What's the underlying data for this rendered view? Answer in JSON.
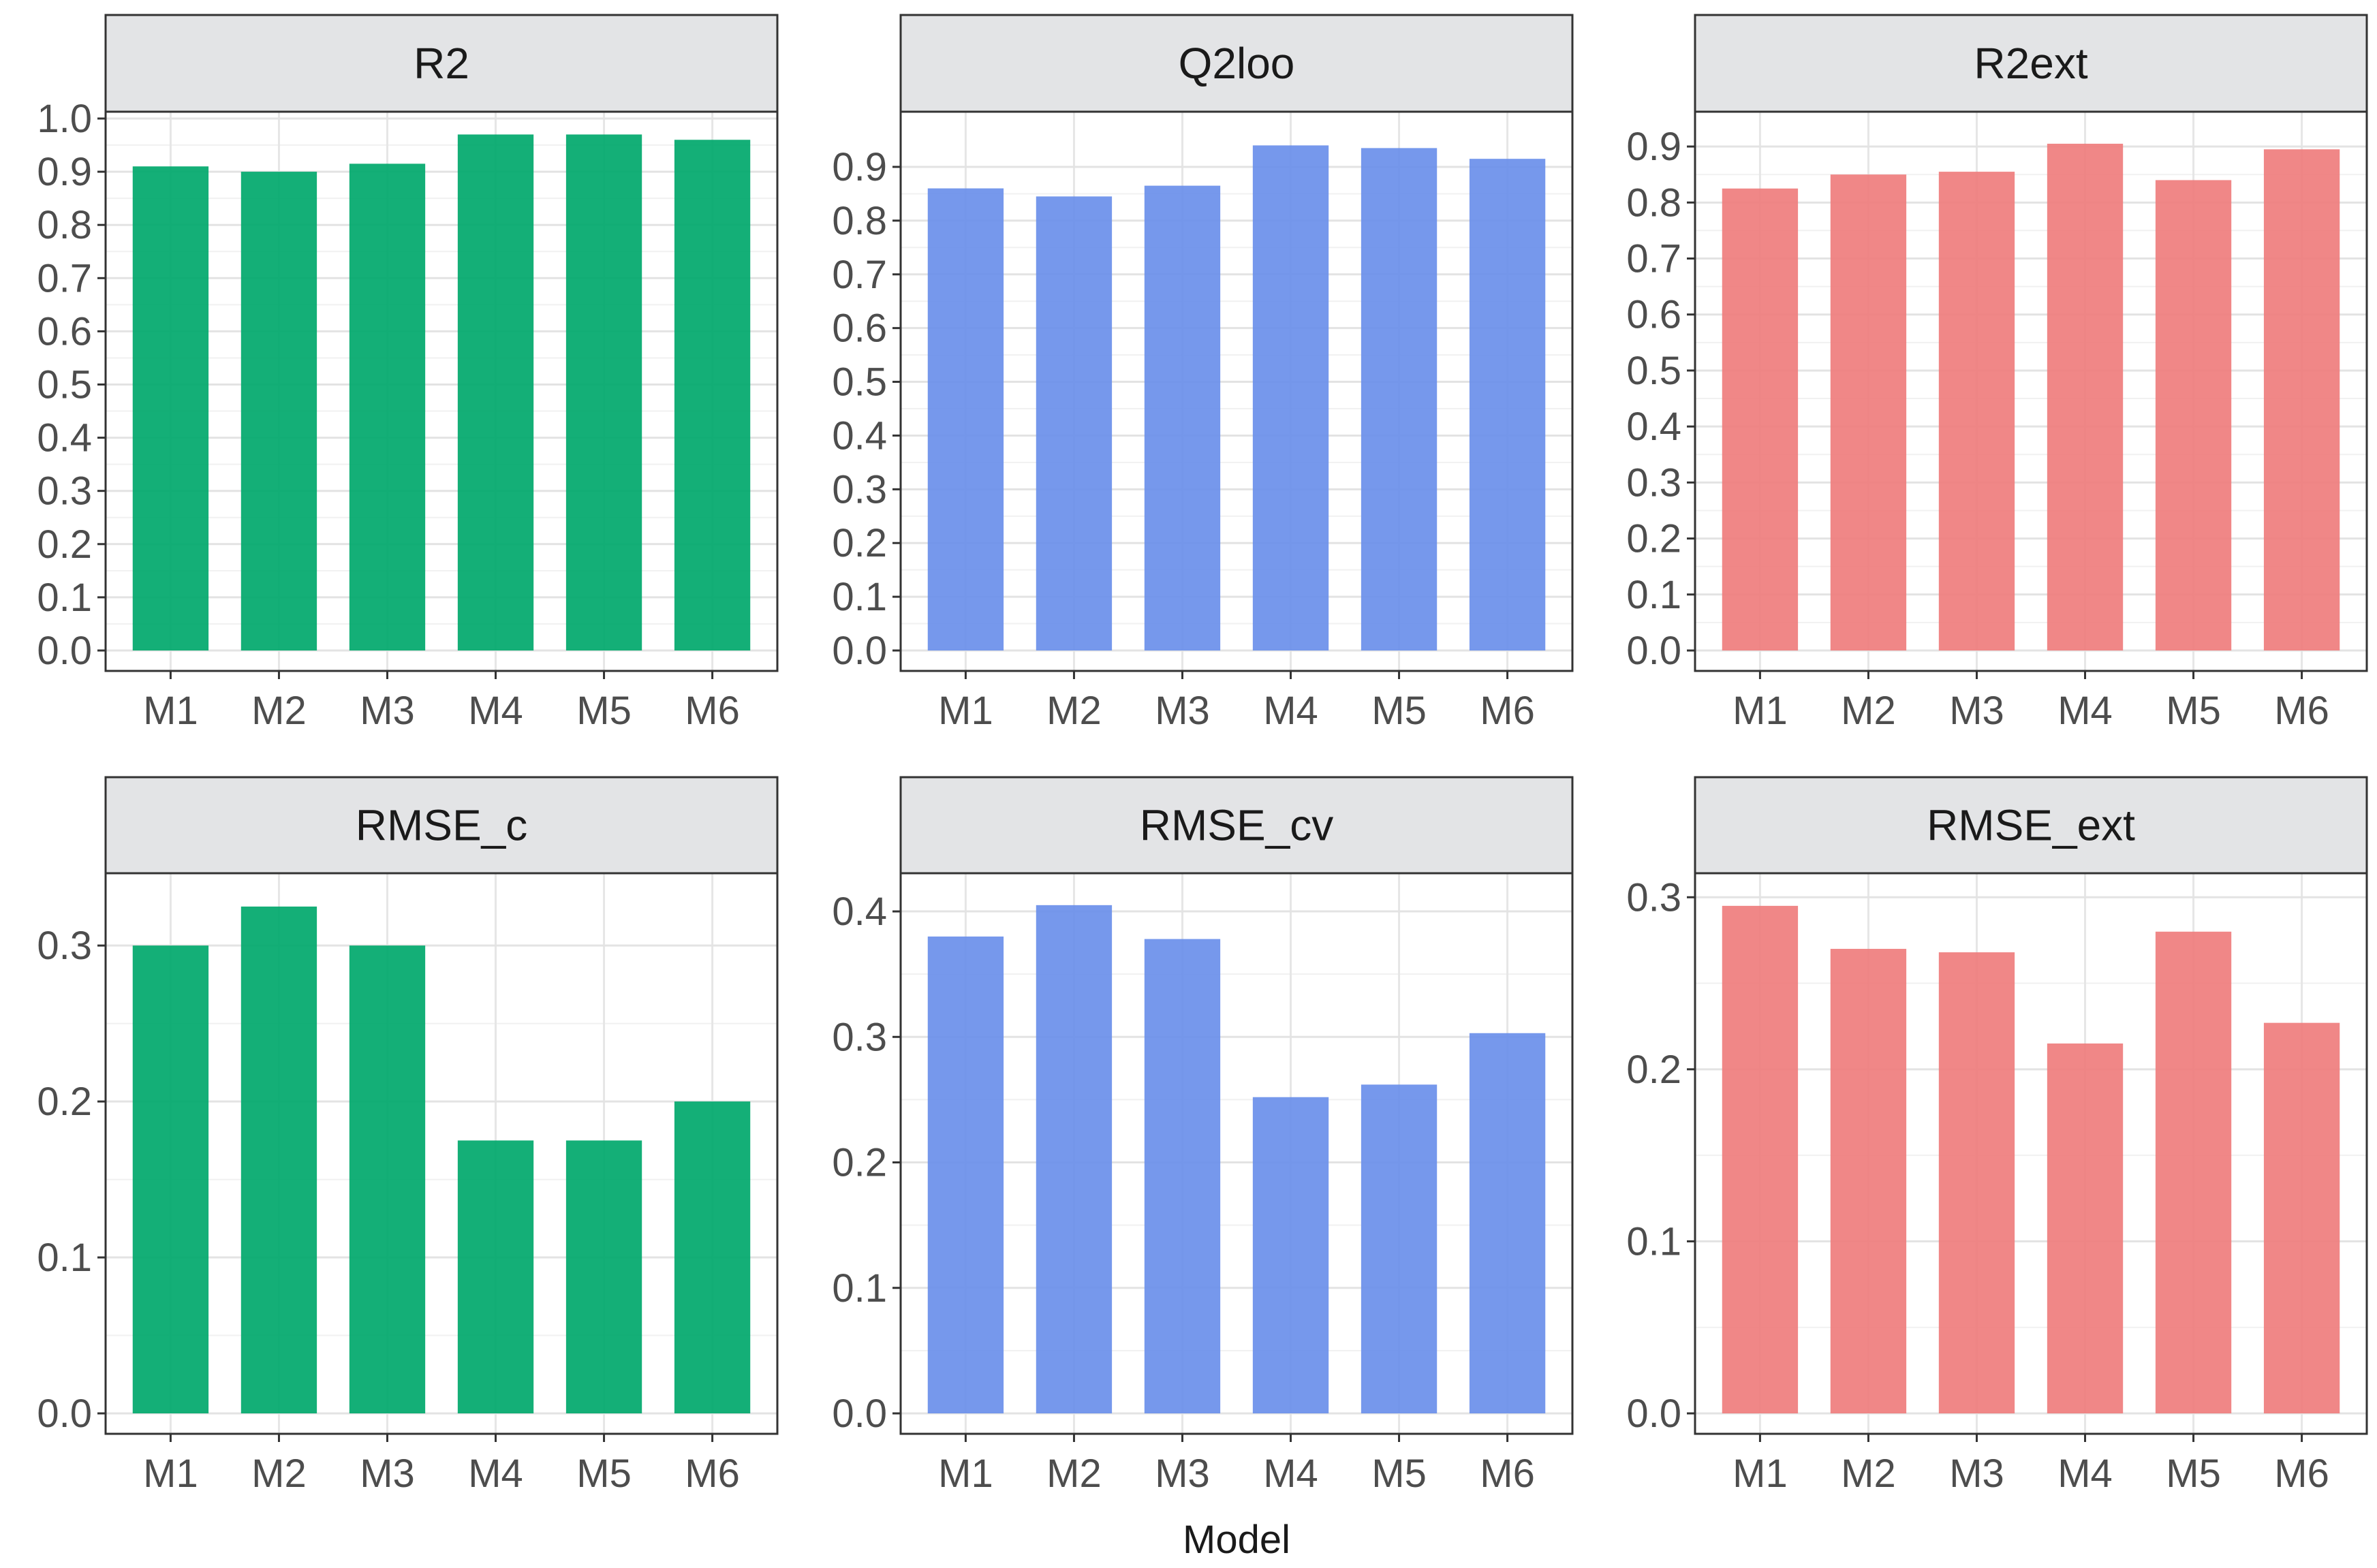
{
  "chart_data": {
    "type": "bar",
    "layout": "facet-grid 2x3",
    "xlabel": "Model",
    "ylabel": "",
    "categories": [
      "M1",
      "M2",
      "M3",
      "M4",
      "M5",
      "M6"
    ],
    "colors": {
      "green": "#00A86B",
      "blue": "#6A8FEA",
      "red": "#EF7D7D",
      "strip": "#E3E4E6"
    },
    "panels": [
      {
        "title": "R2",
        "color": "green",
        "ylim": [
          0,
          1.0
        ],
        "ticks": [
          0.0,
          0.1,
          0.2,
          0.3,
          0.4,
          0.5,
          0.6,
          0.7,
          0.8,
          0.9,
          1.0
        ],
        "tick_labels": [
          "0.0",
          "0.1",
          "0.2",
          "0.3",
          "0.4",
          "0.5",
          "0.6",
          "0.7",
          "0.8",
          "0.9",
          "1.0"
        ],
        "values": [
          0.91,
          0.9,
          0.915,
          0.97,
          0.97,
          0.96
        ]
      },
      {
        "title": "Q2loo",
        "color": "blue",
        "ylim": [
          0,
          0.99
        ],
        "ticks": [
          0.0,
          0.1,
          0.2,
          0.3,
          0.4,
          0.5,
          0.6,
          0.7,
          0.8,
          0.9
        ],
        "tick_labels": [
          "0.0",
          "0.1",
          "0.2",
          "0.3",
          "0.4",
          "0.5",
          "0.6",
          "0.7",
          "0.8",
          "0.9"
        ],
        "values": [
          0.86,
          0.845,
          0.865,
          0.94,
          0.935,
          0.915
        ]
      },
      {
        "title": "R2ext",
        "color": "red",
        "ylim": [
          0,
          0.95
        ],
        "ticks": [
          0.0,
          0.1,
          0.2,
          0.3,
          0.4,
          0.5,
          0.6,
          0.7,
          0.8,
          0.9
        ],
        "tick_labels": [
          "0.0",
          "0.1",
          "0.2",
          "0.3",
          "0.4",
          "0.5",
          "0.6",
          "0.7",
          "0.8",
          "0.9"
        ],
        "values": [
          0.825,
          0.85,
          0.855,
          0.905,
          0.84,
          0.895
        ]
      },
      {
        "title": "RMSE_c",
        "color": "green",
        "ylim": [
          0,
          0.342
        ],
        "ticks": [
          0.0,
          0.1,
          0.2,
          0.3
        ],
        "tick_labels": [
          "0.0",
          "0.1",
          "0.2",
          "0.3"
        ],
        "values": [
          0.3,
          0.325,
          0.3,
          0.175,
          0.175,
          0.2
        ]
      },
      {
        "title": "RMSE_cv",
        "color": "blue",
        "ylim": [
          0,
          0.425
        ],
        "ticks": [
          0.0,
          0.1,
          0.2,
          0.3,
          0.4
        ],
        "tick_labels": [
          "0.0",
          "0.1",
          "0.2",
          "0.3",
          "0.4"
        ],
        "values": [
          0.38,
          0.405,
          0.378,
          0.252,
          0.262,
          0.303
        ]
      },
      {
        "title": "RMSE_ext",
        "color": "red",
        "ylim": [
          0,
          0.31
        ],
        "ticks": [
          0.0,
          0.1,
          0.2,
          0.3
        ],
        "tick_labels": [
          "0.0",
          "0.1",
          "0.2",
          "0.3"
        ],
        "values": [
          0.295,
          0.27,
          0.268,
          0.215,
          0.28,
          0.227
        ]
      }
    ]
  }
}
